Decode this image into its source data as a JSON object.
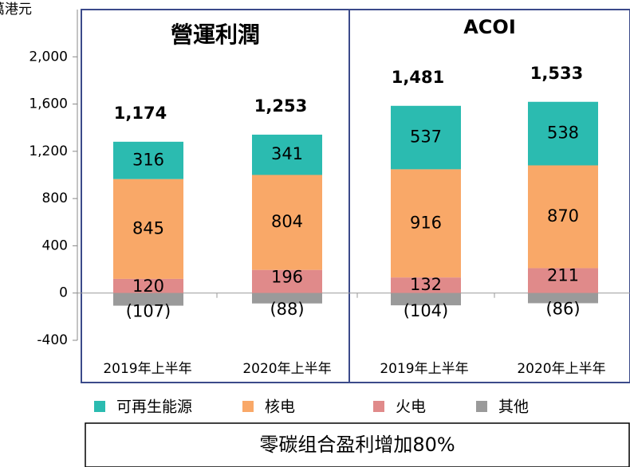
{
  "chart_data": {
    "type": "bar",
    "stacked": true,
    "ylabel": "萬港元",
    "panels": [
      {
        "title": "營運利潤"
      },
      {
        "title": "ACOI"
      }
    ],
    "categories": [
      "2019年上半年",
      "2020年上半年",
      "2019年上半年",
      "2020年上半年"
    ],
    "series": [
      {
        "name": "可再生能源",
        "color": "#2bbbb0",
        "values": [
          316,
          341,
          537,
          538
        ]
      },
      {
        "name": "核电",
        "color": "#f9a868",
        "values": [
          845,
          804,
          916,
          870
        ]
      },
      {
        "name": "火电",
        "color": "#e08a8a",
        "values": [
          120,
          196,
          132,
          211
        ]
      },
      {
        "name": "其他",
        "color": "#9a9a9a",
        "values": [
          -107,
          -88,
          -104,
          -86
        ],
        "value_labels": [
          "(107)",
          "(88)",
          "(104)",
          "(86)"
        ]
      }
    ],
    "totals": [
      1174,
      1253,
      1481,
      1533
    ],
    "total_labels": [
      "1,174",
      "1,253",
      "1,481",
      "1,533"
    ],
    "ylim": [
      -400,
      2400
    ],
    "yticks": [
      {
        "value": 2000,
        "label": "2,000"
      },
      {
        "value": 1600,
        "label": "1,600"
      },
      {
        "value": 1200,
        "label": "1,200"
      },
      800,
      400,
      0,
      -400
    ],
    "footnote": "零碳组合盈利增加80%"
  }
}
